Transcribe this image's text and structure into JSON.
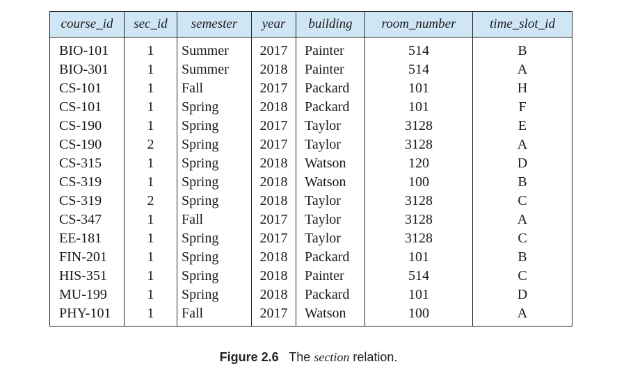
{
  "table": {
    "headers": [
      "course_id",
      "sec_id",
      "semester",
      "year",
      "building",
      "room_number",
      "time_slot_id"
    ],
    "rows": [
      [
        "BIO-101",
        "1",
        "Summer",
        "2017",
        "Painter",
        "514",
        "B"
      ],
      [
        "BIO-301",
        "1",
        "Summer",
        "2018",
        "Painter",
        "514",
        "A"
      ],
      [
        "CS-101",
        "1",
        "Fall",
        "2017",
        "Packard",
        "101",
        "H"
      ],
      [
        "CS-101",
        "1",
        "Spring",
        "2018",
        "Packard",
        "101",
        "F"
      ],
      [
        "CS-190",
        "1",
        "Spring",
        "2017",
        "Taylor",
        "3128",
        "E"
      ],
      [
        "CS-190",
        "2",
        "Spring",
        "2017",
        "Taylor",
        "3128",
        "A"
      ],
      [
        "CS-315",
        "1",
        "Spring",
        "2018",
        "Watson",
        "120",
        "D"
      ],
      [
        "CS-319",
        "1",
        "Spring",
        "2018",
        "Watson",
        "100",
        "B"
      ],
      [
        "CS-319",
        "2",
        "Spring",
        "2018",
        "Taylor",
        "3128",
        "C"
      ],
      [
        "CS-347",
        "1",
        "Fall",
        "2017",
        "Taylor",
        "3128",
        "A"
      ],
      [
        "EE-181",
        "1",
        "Spring",
        "2017",
        "Taylor",
        "3128",
        "C"
      ],
      [
        "FIN-201",
        "1",
        "Spring",
        "2018",
        "Packard",
        "101",
        "B"
      ],
      [
        "HIS-351",
        "1",
        "Spring",
        "2018",
        "Painter",
        "514",
        "C"
      ],
      [
        "MU-199",
        "1",
        "Spring",
        "2018",
        "Packard",
        "101",
        "D"
      ],
      [
        "PHY-101",
        "1",
        "Fall",
        "2017",
        "Watson",
        "100",
        "A"
      ]
    ],
    "header_color": "#cfe7f5"
  },
  "caption": {
    "label": "Figure 2.6",
    "prefix": "The",
    "relation": "section",
    "suffix": "relation."
  }
}
